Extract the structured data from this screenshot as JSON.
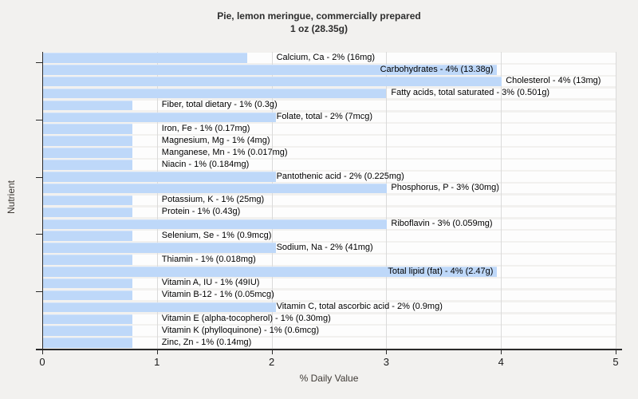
{
  "title": {
    "line1": "Pie, lemon meringue, commercially prepared",
    "line2": "1 oz (28.35g)"
  },
  "chart_data": {
    "type": "bar",
    "orientation": "horizontal",
    "title": "Pie, lemon meringue, commercially prepared 1 oz (28.35g)",
    "xlabel": "% Daily Value",
    "ylabel": "Nutrient",
    "xlim": [
      0,
      5
    ],
    "xticks": [
      0,
      1,
      2,
      3,
      4,
      5
    ],
    "grid": true,
    "bar_color": "#bed8f9",
    "row_stripe_color": "#fdfdfd",
    "background_color": "#f2f1ef",
    "rows": [
      {
        "nutrient": "Calcium, Ca",
        "pct": 2,
        "amount": "16mg",
        "label": "Calcium, Ca - 2% (16mg)",
        "bar_value": 1.78,
        "label_inside": false
      },
      {
        "nutrient": "Carbohydrates",
        "pct": 4,
        "amount": "13.38g",
        "label": "Carbohydrates - 4% (13.38g)",
        "bar_value": 3.96,
        "label_inside": true
      },
      {
        "nutrient": "Cholesterol",
        "pct": 4,
        "amount": "13mg",
        "label": "Cholesterol - 4% (13mg)",
        "bar_value": 4.0,
        "label_inside": false
      },
      {
        "nutrient": "Fatty acids, total saturated",
        "pct": 3,
        "amount": "0.501g",
        "label": "Fatty acids, total saturated - 3% (0.501g)",
        "bar_value": 2.99,
        "label_inside": false
      },
      {
        "nutrient": "Fiber, total dietary",
        "pct": 1,
        "amount": "0.3g",
        "label": "Fiber, total dietary - 1% (0.3g)",
        "bar_value": 0.78,
        "label_inside": false
      },
      {
        "nutrient": "Folate, total",
        "pct": 2,
        "amount": "7mcg",
        "label": "Folate, total - 2% (7mcg)",
        "bar_value": 2.03,
        "label_inside": false
      },
      {
        "nutrient": "Iron, Fe",
        "pct": 1,
        "amount": "0.17mg",
        "label": "Iron, Fe - 1% (0.17mg)",
        "bar_value": 0.78,
        "label_inside": false
      },
      {
        "nutrient": "Magnesium, Mg",
        "pct": 1,
        "amount": "4mg",
        "label": "Magnesium, Mg - 1% (4mg)",
        "bar_value": 0.78,
        "label_inside": false
      },
      {
        "nutrient": "Manganese, Mn",
        "pct": 1,
        "amount": "0.017mg",
        "label": "Manganese, Mn - 1% (0.017mg)",
        "bar_value": 0.78,
        "label_inside": false
      },
      {
        "nutrient": "Niacin",
        "pct": 1,
        "amount": "0.184mg",
        "label": "Niacin - 1% (0.184mg)",
        "bar_value": 0.78,
        "label_inside": false
      },
      {
        "nutrient": "Pantothenic acid",
        "pct": 2,
        "amount": "0.225mg",
        "label": "Pantothenic acid - 2% (0.225mg)",
        "bar_value": 2.03,
        "label_inside": false
      },
      {
        "nutrient": "Phosphorus, P",
        "pct": 3,
        "amount": "30mg",
        "label": "Phosphorus, P - 3% (30mg)",
        "bar_value": 3.0,
        "label_inside": false
      },
      {
        "nutrient": "Potassium, K",
        "pct": 1,
        "amount": "25mg",
        "label": "Potassium, K - 1% (25mg)",
        "bar_value": 0.78,
        "label_inside": false
      },
      {
        "nutrient": "Protein",
        "pct": 1,
        "amount": "0.43g",
        "label": "Protein - 1% (0.43g)",
        "bar_value": 0.78,
        "label_inside": false
      },
      {
        "nutrient": "Riboflavin",
        "pct": 3,
        "amount": "0.059mg",
        "label": "Riboflavin - 3% (0.059mg)",
        "bar_value": 3.0,
        "label_inside": false
      },
      {
        "nutrient": "Selenium, Se",
        "pct": 1,
        "amount": "0.9mcg",
        "label": "Selenium, Se - 1% (0.9mcg)",
        "bar_value": 0.78,
        "label_inside": false
      },
      {
        "nutrient": "Sodium, Na",
        "pct": 2,
        "amount": "41mg",
        "label": "Sodium, Na - 2% (41mg)",
        "bar_value": 2.03,
        "label_inside": false
      },
      {
        "nutrient": "Thiamin",
        "pct": 1,
        "amount": "0.018mg",
        "label": "Thiamin - 1% (0.018mg)",
        "bar_value": 0.78,
        "label_inside": false
      },
      {
        "nutrient": "Total lipid (fat)",
        "pct": 4,
        "amount": "2.47g",
        "label": "Total lipid (fat) - 4% (2.47g)",
        "bar_value": 3.96,
        "label_inside": true
      },
      {
        "nutrient": "Vitamin A, IU",
        "pct": 1,
        "amount": "49IU",
        "label": "Vitamin A, IU - 1% (49IU)",
        "bar_value": 0.78,
        "label_inside": false
      },
      {
        "nutrient": "Vitamin B-12",
        "pct": 1,
        "amount": "0.05mcg",
        "label": "Vitamin B-12 - 1% (0.05mcg)",
        "bar_value": 0.78,
        "label_inside": false
      },
      {
        "nutrient": "Vitamin C, total ascorbic acid",
        "pct": 2,
        "amount": "0.9mg",
        "label": "Vitamin C, total ascorbic acid - 2% (0.9mg)",
        "bar_value": 2.03,
        "label_inside": false
      },
      {
        "nutrient": "Vitamin E (alpha-tocopherol)",
        "pct": 1,
        "amount": "0.30mg",
        "label": "Vitamin E (alpha-tocopherol) - 1% (0.30mg)",
        "bar_value": 0.78,
        "label_inside": false
      },
      {
        "nutrient": "Vitamin K (phylloquinone)",
        "pct": 1,
        "amount": "0.6mcg",
        "label": "Vitamin K (phylloquinone) - 1% (0.6mcg)",
        "bar_value": 0.78,
        "label_inside": false
      },
      {
        "nutrient": "Zinc, Zn",
        "pct": 1,
        "amount": "0.14mg",
        "label": "Zinc, Zn - 1% (0.14mg)",
        "bar_value": 0.78,
        "label_inside": false
      }
    ]
  }
}
